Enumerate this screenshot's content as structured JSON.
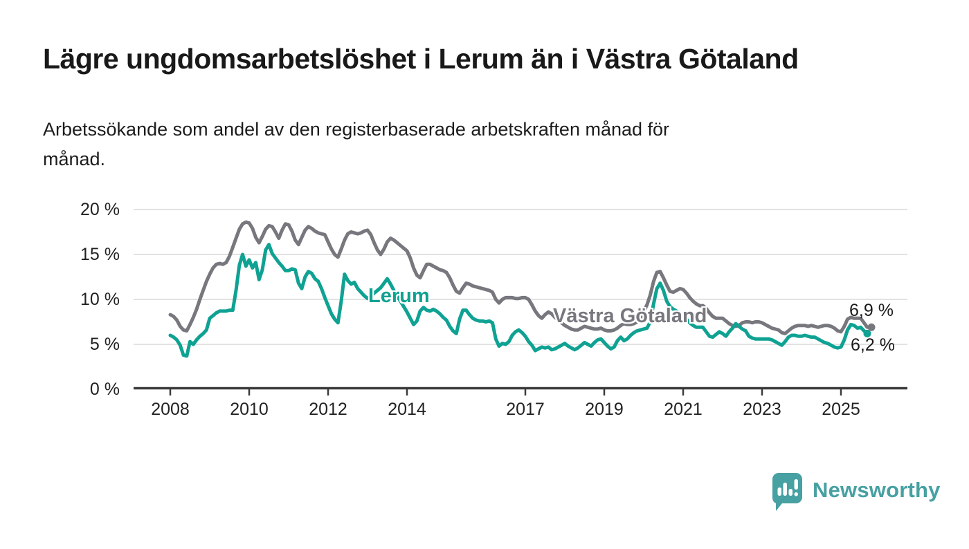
{
  "title": "Lägre ungdomsarbetslöshet i Lerum än i Västra Götaland",
  "subtitle": {
    "lines": [
      "Arbetssökande som andel av den registerbaserade arbetskraften månad för",
      "månad."
    ]
  },
  "colors": {
    "lerum_line": "#0fa293",
    "vastra_gotaland_line": "#77777e",
    "gridline": "#d9d9d9",
    "axis": "#3a3a3a",
    "text": "#222222",
    "logo_teal": "#47a0a2"
  },
  "chart_data": {
    "type": "line",
    "unit": "%",
    "frequency": "monthly",
    "x_start": "2008-01",
    "x_end": "2025-09",
    "ylim": [
      0,
      20
    ],
    "yticks": [
      0,
      5,
      10,
      15,
      20
    ],
    "ytick_labels": [
      "0 %",
      "5 %",
      "10 %",
      "15 %",
      "20 %"
    ],
    "xtick_years": [
      2008,
      2010,
      2012,
      2014,
      2017,
      2019,
      2021,
      2023,
      2025
    ],
    "grid": true,
    "legend_position": "inline-labels",
    "series": [
      {
        "name": "Västra Götaland",
        "color": "#77777e",
        "final_value_label": "6,9 %",
        "values": [
          8.3,
          8.1,
          7.7,
          7.0,
          6.6,
          6.5,
          7.2,
          8.0,
          8.9,
          10.0,
          11.0,
          12.0,
          12.8,
          13.5,
          13.9,
          14.0,
          13.9,
          14.1,
          14.8,
          15.8,
          16.8,
          17.8,
          18.4,
          18.6,
          18.5,
          17.9,
          16.9,
          16.3,
          17.0,
          17.8,
          18.2,
          18.1,
          17.5,
          16.8,
          17.7,
          18.4,
          18.3,
          17.6,
          16.6,
          16.1,
          16.9,
          17.7,
          18.1,
          17.9,
          17.6,
          17.4,
          17.3,
          17.2,
          16.4,
          15.6,
          15.0,
          14.7,
          15.6,
          16.6,
          17.3,
          17.5,
          17.4,
          17.3,
          17.4,
          17.6,
          17.7,
          17.2,
          16.3,
          15.5,
          15.0,
          15.6,
          16.4,
          16.8,
          16.6,
          16.3,
          16.0,
          15.7,
          15.4,
          14.6,
          13.5,
          12.7,
          12.4,
          13.2,
          13.9,
          13.9,
          13.7,
          13.5,
          13.3,
          13.2,
          13.0,
          12.4,
          11.6,
          10.9,
          10.7,
          11.3,
          11.8,
          11.7,
          11.5,
          11.4,
          11.3,
          11.2,
          11.1,
          11.0,
          10.8,
          10.0,
          9.6,
          10.0,
          10.2,
          10.2,
          10.2,
          10.1,
          10.1,
          10.2,
          10.2,
          10.0,
          9.4,
          8.7,
          8.2,
          7.9,
          8.3,
          8.6,
          8.4,
          8.0,
          7.7,
          7.4,
          7.1,
          6.9,
          6.7,
          6.6,
          6.6,
          6.8,
          7.0,
          6.9,
          6.8,
          6.7,
          6.7,
          6.8,
          6.6,
          6.5,
          6.5,
          6.6,
          6.8,
          7.1,
          7.3,
          7.2,
          7.2,
          7.3,
          7.5,
          7.9,
          8.6,
          9.4,
          10.5,
          12.0,
          13.0,
          13.1,
          12.4,
          11.6,
          10.9,
          10.8,
          11.0,
          11.2,
          11.1,
          10.7,
          10.2,
          9.8,
          9.5,
          9.3,
          9.3,
          9.0,
          8.5,
          8.1,
          7.9,
          7.9,
          7.9,
          7.6,
          7.3,
          7.1,
          7.0,
          7.1,
          7.4,
          7.5,
          7.5,
          7.4,
          7.5,
          7.5,
          7.4,
          7.2,
          7.0,
          6.8,
          6.7,
          6.6,
          6.3,
          6.2,
          6.5,
          6.8,
          7.0,
          7.1,
          7.1,
          7.1,
          7.0,
          7.1,
          7.0,
          6.9,
          7.0,
          7.1,
          7.1,
          7.0,
          6.8,
          6.5,
          6.4,
          7.0,
          7.8,
          8.0,
          7.9,
          7.9,
          7.9,
          7.4,
          6.9
        ]
      },
      {
        "name": "Lerum",
        "color": "#0fa293",
        "final_value_label": "6,2 %",
        "values": [
          6.0,
          5.8,
          5.5,
          4.9,
          3.8,
          3.7,
          5.3,
          5.0,
          5.5,
          5.9,
          6.2,
          6.6,
          7.9,
          8.2,
          8.5,
          8.7,
          8.7,
          8.7,
          8.8,
          8.8,
          11.0,
          13.8,
          15.0,
          13.7,
          14.4,
          13.5,
          14.1,
          12.2,
          13.3,
          15.5,
          16.1,
          15.1,
          14.6,
          14.1,
          13.7,
          13.2,
          13.2,
          13.4,
          13.3,
          11.8,
          11.2,
          12.5,
          13.1,
          12.9,
          12.3,
          12.0,
          11.2,
          10.2,
          9.3,
          8.4,
          7.8,
          7.4,
          9.8,
          12.8,
          12.1,
          11.7,
          11.9,
          11.2,
          10.8,
          10.4,
          10.1,
          10.3,
          10.7,
          11.0,
          11.3,
          11.8,
          12.3,
          11.7,
          11.0,
          10.4,
          9.8,
          9.2,
          8.6,
          7.9,
          7.2,
          7.6,
          8.7,
          9.1,
          8.8,
          8.7,
          8.9,
          8.7,
          8.4,
          8.0,
          7.7,
          7.0,
          6.5,
          6.2,
          7.8,
          8.8,
          8.8,
          8.3,
          7.9,
          7.7,
          7.6,
          7.6,
          7.5,
          7.6,
          7.4,
          5.6,
          4.8,
          5.1,
          5.0,
          5.3,
          6.0,
          6.4,
          6.6,
          6.3,
          5.9,
          5.3,
          4.9,
          4.3,
          4.5,
          4.7,
          4.6,
          4.7,
          4.4,
          4.5,
          4.7,
          4.9,
          5.1,
          4.8,
          4.6,
          4.4,
          4.6,
          4.9,
          5.2,
          5.0,
          4.8,
          5.2,
          5.5,
          5.6,
          5.2,
          4.8,
          4.5,
          4.7,
          5.4,
          5.8,
          5.4,
          5.6,
          6.0,
          6.3,
          6.5,
          6.6,
          6.7,
          6.8,
          7.5,
          9.5,
          11.2,
          11.8,
          11.0,
          9.8,
          9.2,
          8.9,
          8.7,
          8.5,
          8.1,
          7.8,
          7.4,
          7.1,
          6.9,
          6.9,
          6.9,
          6.4,
          5.9,
          5.8,
          6.1,
          6.4,
          6.2,
          5.9,
          6.4,
          6.8,
          7.3,
          7.0,
          6.7,
          6.5,
          5.9,
          5.7,
          5.6,
          5.6,
          5.6,
          5.6,
          5.6,
          5.5,
          5.3,
          5.1,
          4.9,
          5.3,
          5.8,
          6.0,
          6.0,
          5.9,
          5.9,
          6.0,
          5.9,
          5.8,
          5.8,
          5.6,
          5.4,
          5.2,
          5.1,
          4.9,
          4.7,
          4.6,
          4.7,
          5.5,
          6.6,
          7.2,
          7.1,
          6.8,
          6.9,
          6.5,
          6.2
        ]
      }
    ]
  },
  "footer": {
    "logo_text": "Newsworthy"
  }
}
